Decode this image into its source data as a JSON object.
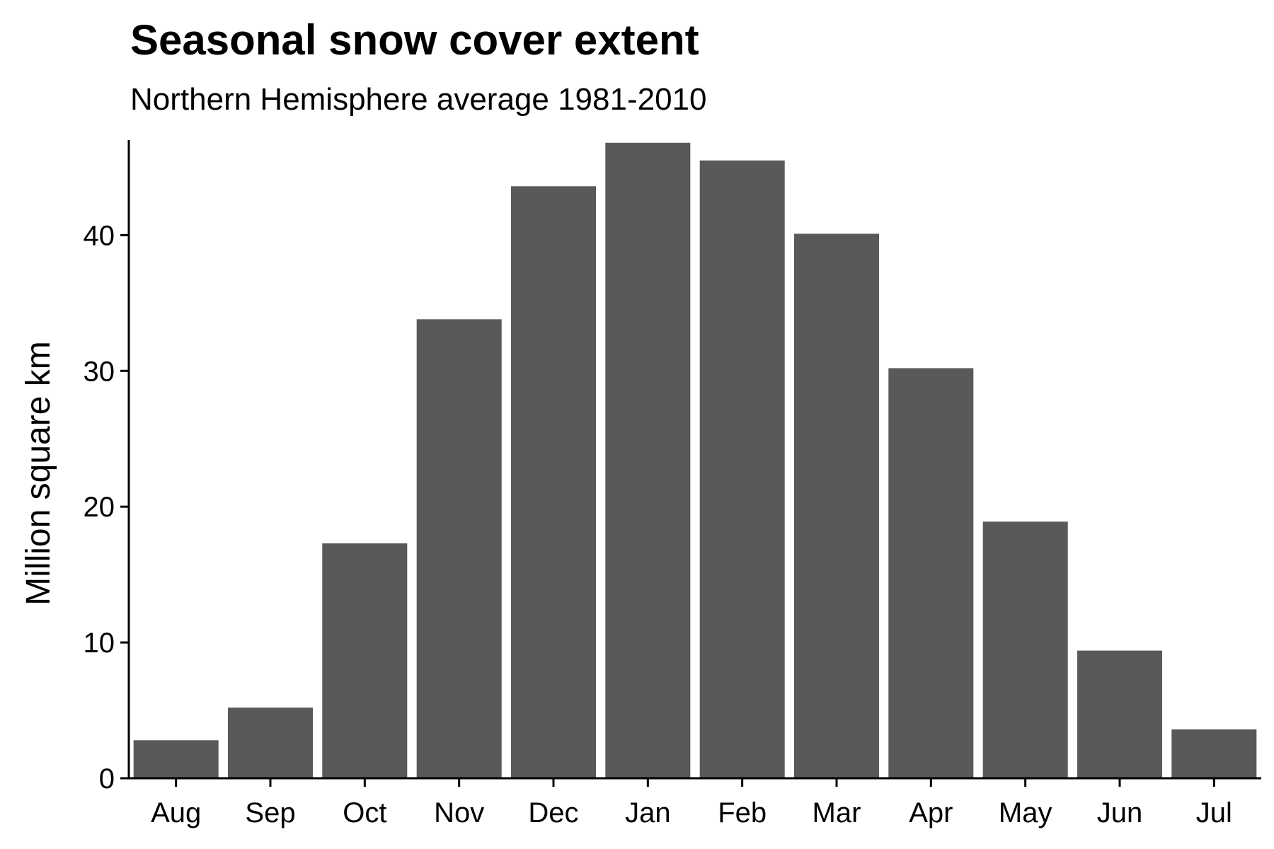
{
  "chart_data": {
    "type": "bar",
    "title": "Seasonal snow cover extent",
    "subtitle": "Northern Hemisphere average 1981-2010",
    "xlabel": "",
    "ylabel": "Million square km",
    "categories": [
      "Aug",
      "Sep",
      "Oct",
      "Nov",
      "Dec",
      "Jan",
      "Feb",
      "Mar",
      "Apr",
      "May",
      "Jun",
      "Jul"
    ],
    "values": [
      2.8,
      5.2,
      17.3,
      33.8,
      43.6,
      46.8,
      45.5,
      40.1,
      30.2,
      18.9,
      9.4,
      3.6
    ],
    "ylim": [
      0,
      47
    ],
    "yticks": [
      0,
      10,
      20,
      30,
      40
    ],
    "bar_color": "#595959",
    "grid": false,
    "legend": "none"
  }
}
